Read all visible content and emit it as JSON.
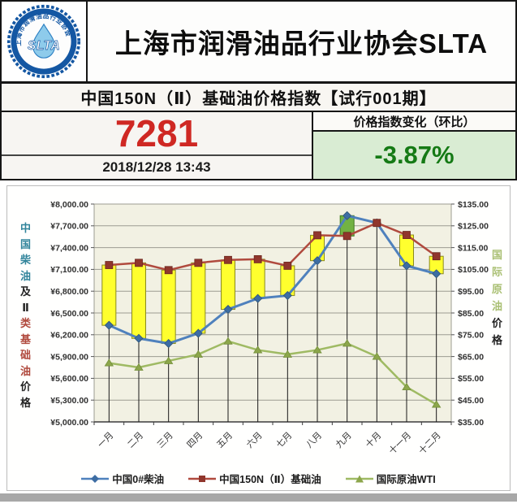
{
  "header": {
    "org_title": "上海市润滑油品行业协会SLTA",
    "logo": {
      "text": "SLTA",
      "ring_text": "上海市润滑油品行业协会",
      "ring_color": "#1457a3",
      "drop_color": "#8ecbeb"
    }
  },
  "title_bar": {
    "text": "中国150N（Ⅱ）基础油价格指数【试行001期】"
  },
  "index_panel": {
    "value": "7281",
    "value_color": "#cf2823",
    "timestamp": "2018/12/28 13:43",
    "change_label": "价格指数变化（环比）",
    "change_value": "-3.87%",
    "change_color": "#157a15",
    "change_bg": "#d9ecd3"
  },
  "chart_data": {
    "type": "line + floating spread bars (candlestick style), dual axis",
    "categories": [
      "一月",
      "二月",
      "三月",
      "四月",
      "五月",
      "六月",
      "七月",
      "八月",
      "九月",
      "十月",
      "十一月",
      "十二月"
    ],
    "series": [
      {
        "name": "中国0#柴油",
        "axis": "left",
        "marker": "diamond",
        "color": "#4f81bd",
        "marker_color": "#3d6da3",
        "values": [
          6330,
          6150,
          6080,
          6220,
          6550,
          6700,
          6740,
          7220,
          7840,
          7740,
          7150,
          7040
        ]
      },
      {
        "name": "中国150N（Ⅱ）基础油",
        "axis": "left",
        "marker": "square",
        "color": "#b04a3e",
        "marker_color": "#90362c",
        "values": [
          7160,
          7190,
          7090,
          7190,
          7230,
          7240,
          7150,
          7570,
          7560,
          7740,
          7574,
          7281
        ]
      },
      {
        "name": "国际原油WTI",
        "axis": "right",
        "marker": "triangle",
        "color": "#9fba63",
        "marker_color": "#8ca64b",
        "values": [
          62,
          60,
          63,
          66,
          72,
          68,
          66,
          68,
          71,
          65,
          51,
          43
        ]
      }
    ],
    "spread_bars": {
      "note": "bar spans 中国150N(Ⅱ)基础油 vs 中国0#柴油 on left axis; yellow = base oil above diesel, green = diesel above base oil (九月)",
      "up_color": "#ffff2e",
      "up_border": "#8a8a1e",
      "down_color": "#72b243",
      "down_border": "#3f7a1f"
    },
    "left_axis": {
      "min": 5000,
      "max": 8000,
      "step": 300,
      "tick_labels": [
        "¥8,000.00",
        "¥7,700.00",
        "¥7,400.00",
        "¥7,100.00",
        "¥6,800.00",
        "¥6,500.00",
        "¥6,200.00",
        "¥5,900.00",
        "¥5,600.00",
        "¥5,300.00",
        "¥5,000.00"
      ],
      "title": "中国柴油及Ⅱ类基础油价格",
      "title_chars": [
        {
          "ch": "中",
          "color": "#31849b"
        },
        {
          "ch": "国",
          "color": "#31849b"
        },
        {
          "ch": "柴",
          "color": "#31849b"
        },
        {
          "ch": "油",
          "color": "#31849b"
        },
        {
          "ch": "及",
          "color": "#222222"
        },
        {
          "ch": "Ⅱ",
          "color": "#222222"
        },
        {
          "ch": "类",
          "color": "#b0493d"
        },
        {
          "ch": "基",
          "color": "#b0493d"
        },
        {
          "ch": "础",
          "color": "#b0493d"
        },
        {
          "ch": "油",
          "color": "#b0493d"
        },
        {
          "ch": "价",
          "color": "#222222"
        },
        {
          "ch": "格",
          "color": "#222222"
        }
      ]
    },
    "right_axis": {
      "min": 35,
      "max": 135,
      "step": 10,
      "tick_labels": [
        "$135.00",
        "$125.00",
        "$115.00",
        "$105.00",
        "$95.00",
        "$85.00",
        "$75.00",
        "$65.00",
        "$55.00",
        "$45.00",
        "$35.00"
      ],
      "title": "国际原油价格",
      "title_chars": [
        {
          "ch": "国",
          "color": "#a9bf72"
        },
        {
          "ch": "际",
          "color": "#a9bf72"
        },
        {
          "ch": "原",
          "color": "#a9bf72"
        },
        {
          "ch": "油",
          "color": "#a9bf72"
        },
        {
          "ch": "价",
          "color": "#222222"
        },
        {
          "ch": "格",
          "color": "#222222"
        }
      ]
    },
    "plot_bg": "#f2f1e3",
    "grid_color": "#9c9c92",
    "legend_position": "bottom"
  }
}
